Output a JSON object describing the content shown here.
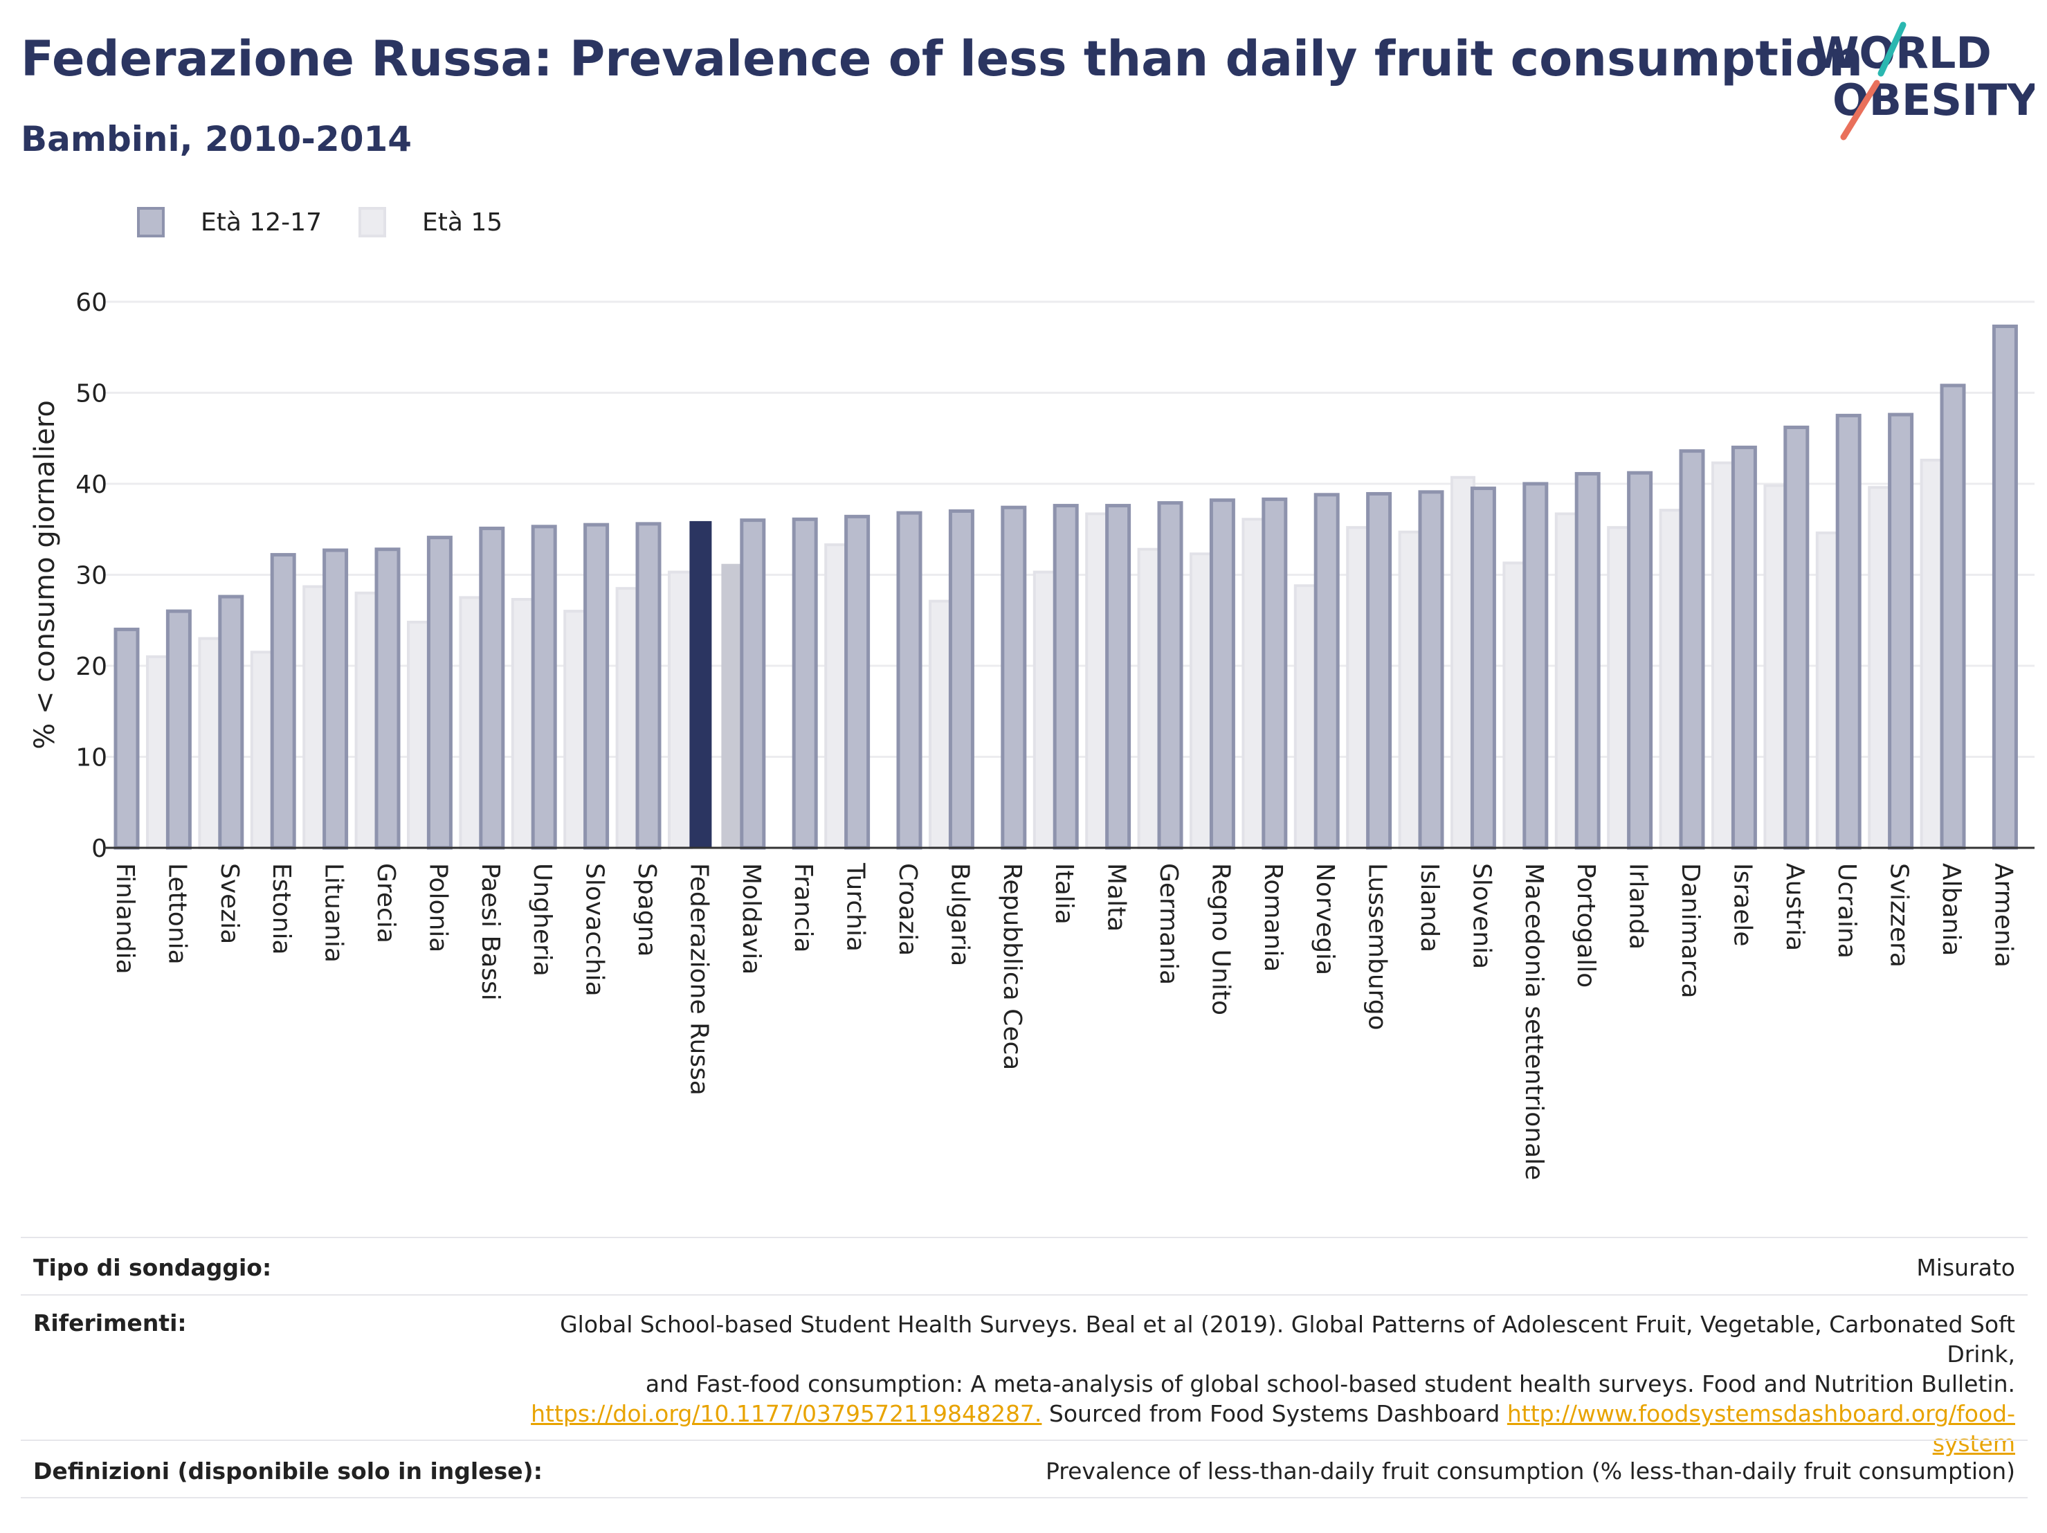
{
  "header": {
    "title": "Federazione Russa: Prevalence of less than daily fruit consumption",
    "subtitle": "Bambini, 2010-2014",
    "logo_line1": "WORLD",
    "logo_line2": "OBESITY"
  },
  "legend": {
    "series1": "Età 12-17",
    "series2": "Età 15"
  },
  "colors": {
    "series1_fill": "#b9bccd",
    "series1_stroke": "#8e93ad",
    "series2_fill": "#ececf0",
    "series2_stroke": "#e2e2e8",
    "highlight1": "#2b3561",
    "highlight2": "#c8c9d3",
    "title": "#2b3561",
    "link": "#e8a300"
  },
  "chart_data": {
    "type": "bar",
    "title": "Federazione Russa: Prevalence of less than daily fruit consumption",
    "subtitle": "Bambini, 2010-2014",
    "ylabel": "% < consumo giornaliero",
    "ylim": [
      0,
      60
    ],
    "yticks": [
      0,
      10,
      20,
      30,
      40,
      50,
      60
    ],
    "grid": true,
    "legend_position": "top-left",
    "highlight": "Federazione Russa",
    "categories": [
      "Finlandia",
      "Lettonia",
      "Svezia",
      "Estonia",
      "Lituania",
      "Grecia",
      "Polonia",
      "Paesi Bassi",
      "Ungheria",
      "Slovacchia",
      "Spagna",
      "Federazione Russa",
      "Moldavia",
      "Francia",
      "Turchia",
      "Croazia",
      "Bulgaria",
      "Repubblica Ceca",
      "Italia",
      "Malta",
      "Germania",
      "Regno Unito",
      "Romania",
      "Norvegia",
      "Lussemburgo",
      "Islanda",
      "Slovenia",
      "Macedonia settentrionale",
      "Portogallo",
      "Irlanda",
      "Danimarca",
      "Israele",
      "Austria",
      "Ucraina",
      "Svizzera",
      "Albania",
      "Armenia"
    ],
    "series": [
      {
        "name": "Età 12-17",
        "values": [
          24,
          26,
          27.6,
          32.2,
          32.7,
          32.8,
          34.1,
          35.1,
          35.3,
          35.5,
          35.6,
          35.9,
          36,
          36.1,
          36.4,
          36.8,
          37,
          37.4,
          37.6,
          37.6,
          37.9,
          38.2,
          38.3,
          38.8,
          38.9,
          39.1,
          39.5,
          40,
          41.1,
          41.2,
          43.6,
          44,
          46.2,
          47.5,
          47.6,
          50.8,
          57.3
        ]
      },
      {
        "name": "Età 15",
        "values": [
          21,
          23,
          21.5,
          28.7,
          28,
          24.8,
          27.5,
          27.3,
          26,
          28.5,
          30.3,
          31.2,
          null,
          33.3,
          null,
          27.1,
          null,
          30.3,
          36.7,
          32.8,
          32.3,
          36.1,
          28.8,
          35.2,
          34.7,
          40.7,
          31.3,
          36.7,
          35.2,
          37.1,
          42.3,
          39.8,
          34.6,
          39.6,
          42.6,
          null,
          null
        ]
      }
    ]
  },
  "footer": {
    "survey_label": "Tipo di sondaggio:",
    "survey_value": "Misurato",
    "refs_label": "Riferimenti:",
    "refs_line1": "Global School-based Student Health Surveys. Beal et al (2019). Global Patterns of Adolescent Fruit, Vegetable, Carbonated Soft Drink,",
    "refs_line2": "and Fast-food consumption: A meta-analysis of global school-based student health surveys. Food and Nutrition Bulletin.",
    "refs_link1": "https://doi.org/10.1177/0379572119848287.",
    "refs_mid": " Sourced from Food Systems Dashboard ",
    "refs_link2a": "http://www.foodsystemsdashboard.org/food-",
    "refs_link2b": "system",
    "defs_label": "Definizioni (disponibile solo in inglese):",
    "defs_value": "Prevalence of less-than-daily fruit consumption (% less-than-daily fruit consumption)"
  }
}
